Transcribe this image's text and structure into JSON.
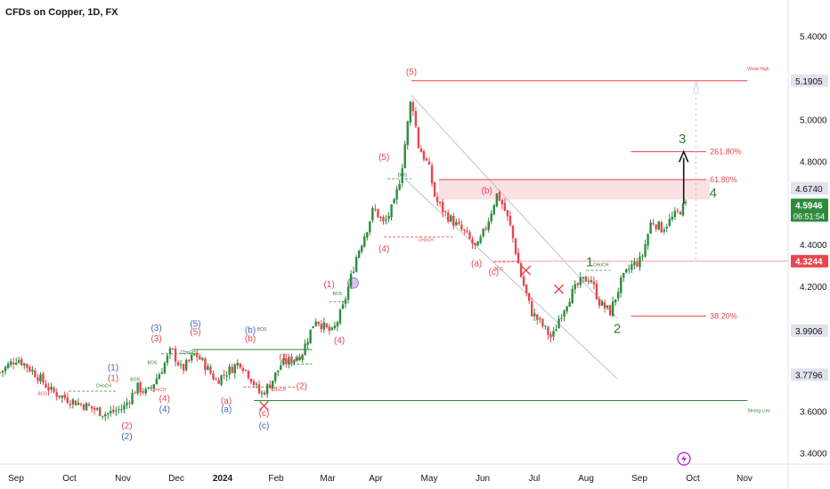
{
  "chart_data": {
    "type": "candlestick",
    "title": "CFDs on Copper, 1D, FX",
    "ylim": [
      3.35,
      5.45
    ],
    "y_ticks": [
      "5.4000",
      "5.0000",
      "4.8000",
      "4.4000",
      "4.2000",
      "3.6000",
      "3.4000"
    ],
    "x_ticks": [
      "Sep",
      "Oct",
      "Nov",
      "Dec",
      "2024",
      "Feb",
      "Mar",
      "Apr",
      "May",
      "Jun",
      "Jul",
      "Aug",
      "Sep",
      "Oct",
      "Nov"
    ],
    "price_tags": [
      {
        "label": "5.1905",
        "value": 5.1905,
        "style": "gray"
      },
      {
        "label": "4.6740",
        "value": 4.674,
        "style": "gray"
      },
      {
        "label": "4.5946",
        "value": 4.5946,
        "style": "green",
        "sub": "06:51:54"
      },
      {
        "label": "4.3244",
        "value": 4.3244,
        "style": "red"
      },
      {
        "label": "3.9906",
        "value": 3.9906,
        "style": "gray"
      },
      {
        "label": "3.7796",
        "value": 3.7796,
        "style": "gray"
      }
    ],
    "price_path": [
      {
        "t": 0,
        "v": 3.79
      },
      {
        "t": 0.025,
        "v": 3.86
      },
      {
        "t": 0.05,
        "v": 3.79
      },
      {
        "t": 0.075,
        "v": 3.7
      },
      {
        "t": 0.1,
        "v": 3.66
      },
      {
        "t": 0.125,
        "v": 3.63
      },
      {
        "t": 0.155,
        "v": 3.59
      },
      {
        "t": 0.18,
        "v": 3.62
      },
      {
        "t": 0.2,
        "v": 3.72
      },
      {
        "t": 0.215,
        "v": 3.69
      },
      {
        "t": 0.235,
        "v": 3.8
      },
      {
        "t": 0.25,
        "v": 3.9
      },
      {
        "t": 0.265,
        "v": 3.8
      },
      {
        "t": 0.285,
        "v": 3.88
      },
      {
        "t": 0.3,
        "v": 3.82
      },
      {
        "t": 0.315,
        "v": 3.75
      },
      {
        "t": 0.33,
        "v": 3.79
      },
      {
        "t": 0.35,
        "v": 3.84
      },
      {
        "t": 0.365,
        "v": 3.77
      },
      {
        "t": 0.38,
        "v": 3.68
      },
      {
        "t": 0.395,
        "v": 3.74
      },
      {
        "t": 0.41,
        "v": 3.83
      },
      {
        "t": 0.425,
        "v": 3.85
      },
      {
        "t": 0.44,
        "v": 3.88
      },
      {
        "t": 0.46,
        "v": 4.05
      },
      {
        "t": 0.475,
        "v": 4.0
      },
      {
        "t": 0.485,
        "v": 3.98
      },
      {
        "t": 0.5,
        "v": 4.1
      },
      {
        "t": 0.52,
        "v": 4.35
      },
      {
        "t": 0.535,
        "v": 4.48
      },
      {
        "t": 0.545,
        "v": 4.58
      },
      {
        "t": 0.56,
        "v": 4.5
      },
      {
        "t": 0.575,
        "v": 4.6
      },
      {
        "t": 0.585,
        "v": 4.75
      },
      {
        "t": 0.6,
        "v": 5.12
      },
      {
        "t": 0.61,
        "v": 4.88
      },
      {
        "t": 0.625,
        "v": 4.78
      },
      {
        "t": 0.635,
        "v": 4.62
      },
      {
        "t": 0.65,
        "v": 4.55
      },
      {
        "t": 0.665,
        "v": 4.5
      },
      {
        "t": 0.68,
        "v": 4.45
      },
      {
        "t": 0.695,
        "v": 4.38
      },
      {
        "t": 0.71,
        "v": 4.5
      },
      {
        "t": 0.725,
        "v": 4.65
      },
      {
        "t": 0.735,
        "v": 4.58
      },
      {
        "t": 0.745,
        "v": 4.48
      },
      {
        "t": 0.76,
        "v": 4.25
      },
      {
        "t": 0.775,
        "v": 4.08
      },
      {
        "t": 0.79,
        "v": 4.02
      },
      {
        "t": 0.805,
        "v": 3.95
      },
      {
        "t": 0.815,
        "v": 4.05
      },
      {
        "t": 0.83,
        "v": 4.15
      },
      {
        "t": 0.845,
        "v": 4.22
      },
      {
        "t": 0.86,
        "v": 4.25
      },
      {
        "t": 0.875,
        "v": 4.12
      },
      {
        "t": 0.89,
        "v": 4.08
      },
      {
        "t": 0.905,
        "v": 4.22
      },
      {
        "t": 0.92,
        "v": 4.3
      },
      {
        "t": 0.935,
        "v": 4.33
      },
      {
        "t": 0.95,
        "v": 4.52
      },
      {
        "t": 0.965,
        "v": 4.48
      },
      {
        "t": 1,
        "v": 4.5946
      }
    ],
    "annotations": {
      "wave_labels": [
        {
          "text": "(5)",
          "color": "#e8464e",
          "t": 0.6,
          "v": 5.22
        },
        {
          "text": "3",
          "color": "#2e7d32",
          "t": 0.995,
          "v": 4.89,
          "big": true
        },
        {
          "text": "4",
          "color": "#2e7d32",
          "t": 1.04,
          "v": 4.63,
          "big": true
        },
        {
          "text": "1",
          "color": "#2e7d32",
          "t": 0.86,
          "v": 4.3,
          "big": true
        },
        {
          "text": "2",
          "color": "#2e7d32",
          "t": 0.9,
          "v": 3.98,
          "big": true
        },
        {
          "text": "(5)",
          "color": "#e8464e",
          "t": 0.56,
          "v": 4.81
        },
        {
          "text": "(4)",
          "color": "#e8464e",
          "t": 0.56,
          "v": 4.37
        },
        {
          "text": "(b)",
          "color": "#e8464e",
          "t": 0.71,
          "v": 4.65
        },
        {
          "text": "(a)",
          "color": "#e8464e",
          "t": 0.695,
          "v": 4.3
        },
        {
          "text": "(c)",
          "color": "#e8464e",
          "t": 0.72,
          "v": 4.26
        },
        {
          "text": "(1)",
          "color": "#e8464e",
          "t": 0.48,
          "v": 4.2
        },
        {
          "text": "(4)",
          "color": "#e8464e",
          "t": 0.495,
          "v": 3.93
        },
        {
          "text": "(1)",
          "color": "#e8464e",
          "t": 0.415,
          "v": 3.85
        },
        {
          "text": "(2)",
          "color": "#e8464e",
          "t": 0.44,
          "v": 3.71
        },
        {
          "text": "(b)",
          "color": "#3f67b5",
          "t": 0.365,
          "v": 3.98
        },
        {
          "text": "(b)",
          "color": "#e8464e",
          "t": 0.365,
          "v": 3.94
        },
        {
          "text": "(5)",
          "color": "#3f67b5",
          "t": 0.285,
          "v": 4.01
        },
        {
          "text": "(5)",
          "color": "#e8464e",
          "t": 0.285,
          "v": 3.97
        },
        {
          "text": "(3)",
          "color": "#3f67b5",
          "t": 0.228,
          "v": 3.99
        },
        {
          "text": "(3)",
          "color": "#e8464e",
          "t": 0.228,
          "v": 3.94
        },
        {
          "text": "(1)",
          "color": "#3f67b5",
          "t": 0.165,
          "v": 3.8
        },
        {
          "text": "(1)",
          "color": "#e8464e",
          "t": 0.165,
          "v": 3.75
        },
        {
          "text": "(4)",
          "color": "#e8464e",
          "t": 0.24,
          "v": 3.65
        },
        {
          "text": "(4)",
          "color": "#3f67b5",
          "t": 0.24,
          "v": 3.6
        },
        {
          "text": "(2)",
          "color": "#e8464e",
          "t": 0.185,
          "v": 3.52
        },
        {
          "text": "(2)",
          "color": "#3f67b5",
          "t": 0.185,
          "v": 3.47
        },
        {
          "text": "(a)",
          "color": "#e8464e",
          "t": 0.33,
          "v": 3.64
        },
        {
          "text": "(a)",
          "color": "#3f67b5",
          "t": 0.33,
          "v": 3.6
        },
        {
          "text": "(c)",
          "color": "#e8464e",
          "t": 0.385,
          "v": 3.58
        },
        {
          "text": "(c)",
          "color": "#3f67b5",
          "t": 0.385,
          "v": 3.52
        }
      ],
      "small_labels": [
        {
          "text": "BOS",
          "color": "#2e7d32",
          "t": 0.58,
          "v": 4.73
        },
        {
          "text": "CHoCH",
          "color": "#e8464e",
          "t": 0.61,
          "v": 4.42
        },
        {
          "text": "BOS",
          "color": "#e8464e",
          "t": 0.72,
          "v": 4.28
        },
        {
          "text": "CHoCH",
          "color": "#2e7d32",
          "t": 0.865,
          "v": 4.3
        },
        {
          "text": "BOS",
          "color": "#2e7d32",
          "t": 0.485,
          "v": 4.16
        },
        {
          "text": "BOS",
          "color": "#2e7d32",
          "t": 0.43,
          "v": 3.85
        },
        {
          "text": "BOS",
          "color": "#2e7d32",
          "t": 0.375,
          "v": 3.99
        },
        {
          "text": "CHoCH",
          "color": "#2e7d32",
          "t": 0.263,
          "v": 3.88
        },
        {
          "text": "BOS",
          "color": "#2e7d32",
          "t": 0.215,
          "v": 3.83
        },
        {
          "text": "CHoCH",
          "color": "#e8464e",
          "t": 0.22,
          "v": 3.7
        },
        {
          "text": "BOS",
          "color": "#2e7d32",
          "t": 0.19,
          "v": 3.75
        },
        {
          "text": "CHoCH",
          "color": "#2e7d32",
          "t": 0.14,
          "v": 3.72
        },
        {
          "text": "CHoCH",
          "color": "#e8464e",
          "t": 0.395,
          "v": 3.7
        },
        {
          "text": "BOS",
          "color": "#e8464e",
          "t": 0.055,
          "v": 3.68
        },
        {
          "text": "Weak High",
          "color": "#e8464e",
          "t": 1.09,
          "v": 5.24
        },
        {
          "text": "Strong Low",
          "color": "#2e7d32",
          "t": 1.09,
          "v": 3.6
        }
      ],
      "fib_levels": [
        {
          "label": "261.80%",
          "value": 4.85
        },
        {
          "label": "61.80%",
          "value": 4.716
        },
        {
          "label": "38.20%",
          "value": 4.06
        }
      ],
      "weak_high_value": 5.1905,
      "strong_low_value": 3.655
    }
  }
}
